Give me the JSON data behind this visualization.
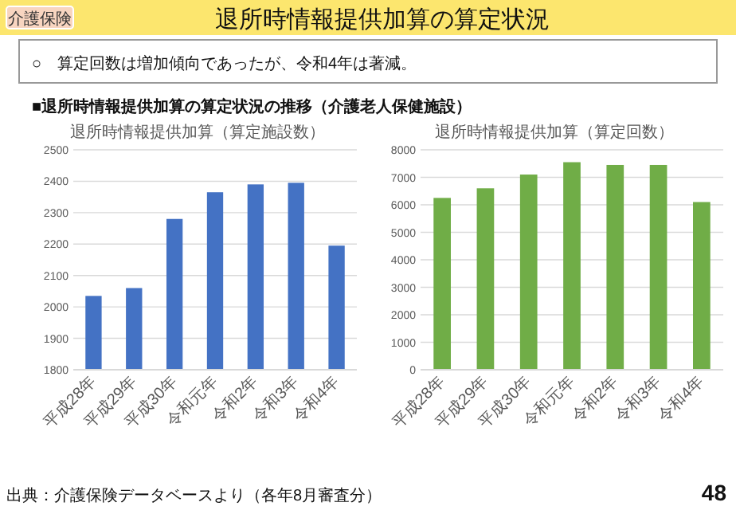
{
  "chart_data": [
    {
      "type": "bar",
      "title": "退所時情報提供加算（算定施設数）",
      "categories": [
        "平成28年",
        "平成29年",
        "平成30年",
        "令和元年",
        "令和2年",
        "令和3年",
        "令和4年"
      ],
      "values": [
        2035,
        2060,
        2280,
        2365,
        2390,
        2395,
        2195
      ],
      "color": "#4472c4",
      "ylim": [
        1800,
        2500
      ],
      "yticks": [
        1800,
        1900,
        2000,
        2100,
        2200,
        2300,
        2400,
        2500
      ],
      "grid": "y",
      "annotations": [
        "介護保険",
        "退所時情報提供加算の算定状況",
        "○　算定回数は増加傾向であったが、令和4年は著減。",
        "■退所時情報提供加算の算定状況の推移（介護老人保健施設）",
        "出典：介護保険データベースより（各年8月審査分）",
        "48"
      ]
    },
    {
      "type": "bar",
      "title": "退所時情報提供加算（算定回数）",
      "categories": [
        "平成28年",
        "平成29年",
        "平成30年",
        "令和元年",
        "令和2年",
        "令和3年",
        "令和4年"
      ],
      "values": [
        6250,
        6600,
        7100,
        7550,
        7450,
        7450,
        6100
      ],
      "color": "#70ad47",
      "ylim": [
        0,
        8000
      ],
      "yticks": [
        0,
        1000,
        2000,
        3000,
        4000,
        5000,
        6000,
        7000,
        8000
      ],
      "grid": "y"
    }
  ]
}
